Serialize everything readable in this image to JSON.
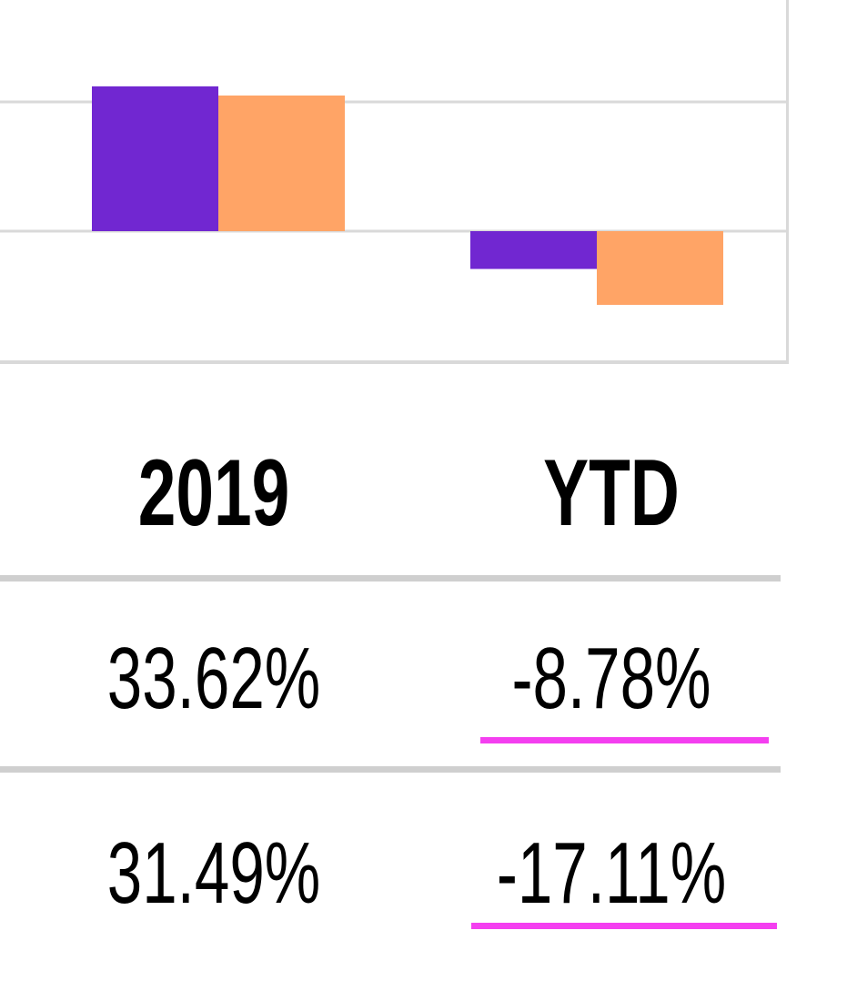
{
  "chart_data": {
    "type": "bar",
    "categories": [
      "2019",
      "YTD"
    ],
    "series": [
      {
        "values": [
          33.62,
          -8.78
        ],
        "color": "#7127d1"
      },
      {
        "values": [
          31.49,
          -17.11
        ],
        "color": "#ffa466"
      }
    ],
    "ylim": [
      -30,
      60
    ],
    "grid": true,
    "title": "",
    "xlabel": "",
    "ylabel": ""
  },
  "table": {
    "headers": [
      "2019",
      "YTD"
    ],
    "rows": [
      [
        "33.62%",
        "-8.78%"
      ],
      [
        "31.49%",
        "-17.11%"
      ]
    ],
    "underline_color": "#f43ff0"
  }
}
